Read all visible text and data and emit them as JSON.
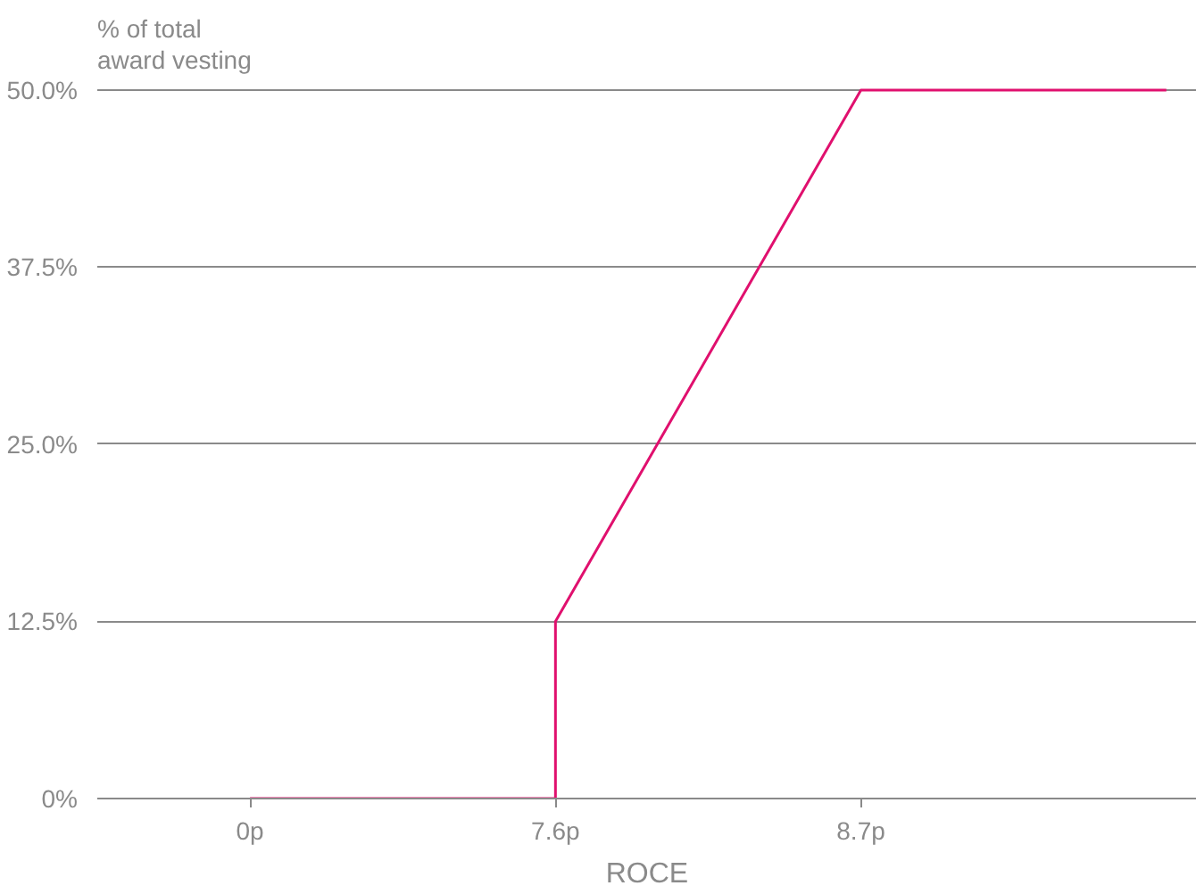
{
  "chart_data": {
    "type": "line",
    "ylabel": "% of total\naward vesting",
    "xlabel": "ROCE",
    "categories": [
      "0p",
      "7.6p",
      "8.7p",
      null
    ],
    "series": [
      {
        "color": "#e0106e",
        "x": [
          "0p",
          "7.6p",
          "7.6p",
          "8.7p",
          null
        ],
        "values": [
          0,
          0,
          12.5,
          50,
          50
        ]
      }
    ],
    "ylim": [
      0,
      50
    ],
    "yticks": [
      {
        "value": 0,
        "label": "0%"
      },
      {
        "value": 12.5,
        "label": "12.5%"
      },
      {
        "value": 25,
        "label": "25.0%"
      },
      {
        "value": 37.5,
        "label": "37.5%"
      },
      {
        "value": 50,
        "label": "50.0%"
      }
    ],
    "grid": "y"
  }
}
